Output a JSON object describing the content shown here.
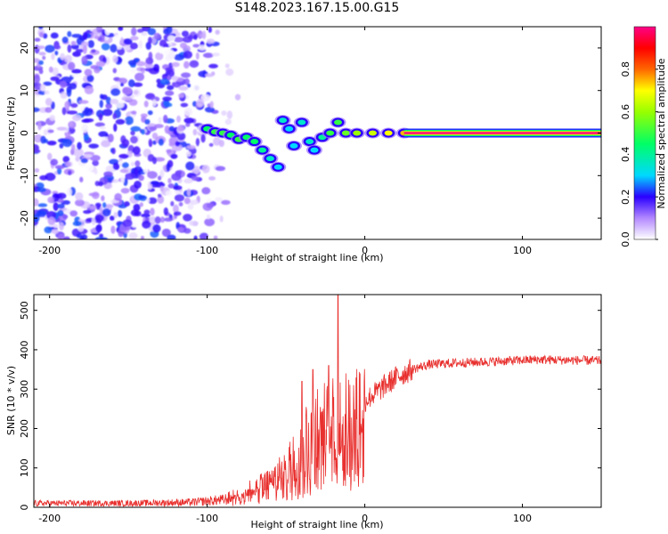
{
  "title": "S148.2023.167.15.00.G15",
  "chart_data": [
    {
      "type": "heatmap",
      "name": "spectrogram",
      "xlabel": "Height of straight line (km)",
      "ylabel": "Frequency (Hz)",
      "xlim": [
        -210,
        150
      ],
      "ylim": [
        -25,
        25
      ],
      "xticks": [
        -200,
        -100,
        0,
        100
      ],
      "xtick_labels": [
        "-200",
        "-100",
        "0",
        "100"
      ],
      "yticks": [
        -20,
        -10,
        0,
        10,
        20
      ],
      "ytick_labels": [
        "-20",
        "-10",
        "0",
        "10",
        "20"
      ],
      "colorbar": {
        "label": "Normalized spectral amplitude",
        "range": [
          0,
          1
        ],
        "ticks": [
          0.0,
          0.2,
          0.4,
          0.6,
          0.8
        ],
        "tick_labels": [
          "0.0",
          "0.2",
          "0.4",
          "0.6",
          "0.8"
        ]
      },
      "ridge": [
        {
          "x": -100,
          "f": 1.0,
          "amp": 0.45
        },
        {
          "x": -95,
          "f": 0.3,
          "amp": 0.5
        },
        {
          "x": -90,
          "f": 0.0,
          "amp": 0.5
        },
        {
          "x": -85,
          "f": -0.5,
          "amp": 0.45
        },
        {
          "x": -80,
          "f": -1.5,
          "amp": 0.5
        },
        {
          "x": -75,
          "f": -1.0,
          "amp": 0.45
        },
        {
          "x": -70,
          "f": -2.0,
          "amp": 0.45
        },
        {
          "x": -65,
          "f": -4.0,
          "amp": 0.4
        },
        {
          "x": -60,
          "f": -6.0,
          "amp": 0.35
        },
        {
          "x": -55,
          "f": -8.0,
          "amp": 0.3
        },
        {
          "x": -52,
          "f": 3.0,
          "amp": 0.35
        },
        {
          "x": -48,
          "f": 1.0,
          "amp": 0.3
        },
        {
          "x": -45,
          "f": -3.0,
          "amp": 0.3
        },
        {
          "x": -40,
          "f": 2.5,
          "amp": 0.35
        },
        {
          "x": -35,
          "f": -2.0,
          "amp": 0.35
        },
        {
          "x": -32,
          "f": -4.0,
          "amp": 0.3
        },
        {
          "x": -27,
          "f": -1.0,
          "amp": 0.4
        },
        {
          "x": -22,
          "f": 0.0,
          "amp": 0.5
        },
        {
          "x": -17,
          "f": 2.5,
          "amp": 0.5
        },
        {
          "x": -12,
          "f": 0.0,
          "amp": 0.55
        },
        {
          "x": -5,
          "f": 0.0,
          "amp": 0.6
        },
        {
          "x": 5,
          "f": 0.0,
          "amp": 0.65
        },
        {
          "x": 15,
          "f": 0.0,
          "amp": 0.7
        },
        {
          "x": 25,
          "f": 0.0,
          "amp": 0.75
        }
      ],
      "band": {
        "x_start": 25,
        "x_end": 150,
        "f": 0.0,
        "amp": 1.0
      },
      "noise_region": {
        "x_start": -210,
        "x_end": -90,
        "amp_max": 0.25
      }
    },
    {
      "type": "line",
      "name": "snr",
      "xlabel": "Height of straight line (km)",
      "ylabel": "SNR (10 * v/v)",
      "xlim": [
        -210,
        150
      ],
      "ylim": [
        0,
        540
      ],
      "xticks": [
        -200,
        -100,
        0,
        100
      ],
      "xtick_labels": [
        "-200",
        "-100",
        "0",
        "100"
      ],
      "yticks": [
        0,
        100,
        200,
        300,
        400,
        500
      ],
      "ytick_labels": [
        "0",
        "100",
        "200",
        "300",
        "400",
        "500"
      ],
      "color": "#e8302e",
      "envelope": {
        "x": [
          -210,
          -150,
          -110,
          -90,
          -80,
          -70,
          -60,
          -50,
          -45,
          -40,
          -35,
          -30,
          -25,
          -20,
          -15,
          -10,
          -5,
          0,
          10,
          20,
          30,
          40,
          50,
          80,
          110,
          150
        ],
        "y": [
          12,
          12,
          15,
          22,
          35,
          50,
          70,
          110,
          150,
          175,
          200,
          210,
          215,
          220,
          225,
          230,
          240,
          270,
          300,
          330,
          350,
          362,
          365,
          370,
          375,
          372
        ]
      },
      "spikes": [
        {
          "x": -40,
          "y": 320
        },
        {
          "x": -33,
          "y": 350
        },
        {
          "x": -30,
          "y": 300
        },
        {
          "x": -23,
          "y": 360
        },
        {
          "x": -17,
          "y": 540
        },
        {
          "x": -12,
          "y": 340
        },
        {
          "x": -3,
          "y": 340
        }
      ]
    }
  ]
}
